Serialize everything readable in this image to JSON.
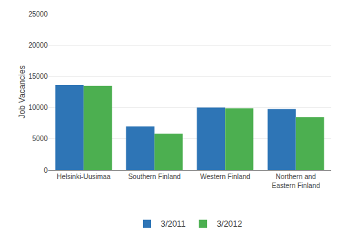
{
  "chart_data": {
    "type": "bar",
    "ylabel": "Job Vacancies",
    "categories": [
      "Helsinki-Uusimaa",
      "Southern Finland",
      "Western Finland",
      "Northern and\nEastern Finland"
    ],
    "series": [
      {
        "name": "3/2011",
        "color": "#2E75B6",
        "values": [
          13600,
          7000,
          10000,
          9750
        ]
      },
      {
        "name": "3/2012",
        "color": "#4CAF50",
        "values": [
          13500,
          5800,
          9900,
          8500
        ]
      }
    ],
    "ylim": [
      0,
      25000
    ],
    "yticks": [
      0,
      5000,
      10000,
      15000,
      20000,
      25000
    ],
    "grid": true,
    "legend": "bottom"
  }
}
